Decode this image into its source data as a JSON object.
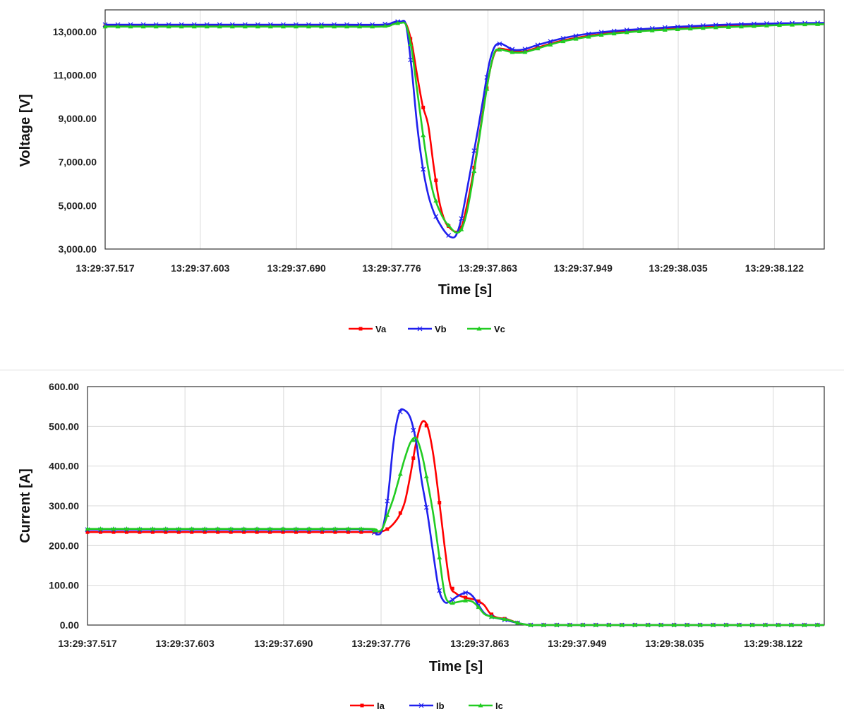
{
  "chart_data": [
    {
      "type": "line",
      "xlabel": "Time [s]",
      "ylabel": "Voltage [V]",
      "x_ticks": [
        "13:29:37.517",
        "13:29:37.603",
        "13:29:37.690",
        "13:29:37.776",
        "13:29:37.863",
        "13:29:37.949",
        "13:29:38.035",
        "13:29:38.122"
      ],
      "x_tick_seconds": [
        0,
        0.086,
        0.173,
        0.259,
        0.346,
        0.432,
        0.518,
        0.605
      ],
      "xlim_seconds": [
        0,
        0.65
      ],
      "y_ticks": [
        "3,000.00",
        "5,000.00",
        "7,000.00",
        "9,000.00",
        "11,000.00",
        "13,000.00"
      ],
      "y_tick_values": [
        3000,
        5000,
        7000,
        9000,
        11000,
        13000
      ],
      "ylim": [
        3000,
        14000
      ],
      "grid": "vertical",
      "legend_position": "bottom-center",
      "x_seconds": [
        0,
        0.05,
        0.1,
        0.15,
        0.2,
        0.25,
        0.26,
        0.263,
        0.267,
        0.272,
        0.277,
        0.282,
        0.287,
        0.292,
        0.297,
        0.302,
        0.307,
        0.312,
        0.317,
        0.322,
        0.327,
        0.332,
        0.337,
        0.342,
        0.347,
        0.352,
        0.357,
        0.362,
        0.367,
        0.372,
        0.38,
        0.39,
        0.41,
        0.43,
        0.45,
        0.47,
        0.49,
        0.51,
        0.53,
        0.55,
        0.57,
        0.59,
        0.61,
        0.63,
        0.65
      ],
      "series": [
        {
          "name": "Va",
          "color": "#ff0000",
          "marker": "square",
          "values": [
            13250,
            13250,
            13250,
            13250,
            13250,
            13250,
            13350,
            13400,
            13420,
            13350,
            12500,
            11000,
            9600,
            8700,
            6800,
            5200,
            4300,
            3950,
            3800,
            4000,
            5000,
            6300,
            7800,
            9500,
            11000,
            12000,
            12200,
            12180,
            12130,
            12080,
            12100,
            12250,
            12550,
            12750,
            12900,
            13000,
            13080,
            13120,
            13180,
            13220,
            13260,
            13300,
            13330,
            13350,
            13360
          ]
        },
        {
          "name": "Vb",
          "color": "#2020ee",
          "marker": "x",
          "values": [
            13320,
            13320,
            13320,
            13320,
            13320,
            13320,
            13420,
            13460,
            13460,
            13300,
            11300,
            8700,
            6800,
            5500,
            4700,
            4200,
            3800,
            3560,
            3620,
            4400,
            5700,
            7100,
            8500,
            10000,
            11500,
            12300,
            12450,
            12350,
            12200,
            12150,
            12200,
            12370,
            12650,
            12850,
            12980,
            13070,
            13130,
            13200,
            13250,
            13300,
            13330,
            13360,
            13380,
            13390,
            13400
          ]
        },
        {
          "name": "Vc",
          "color": "#22cc22",
          "marker": "triangle",
          "values": [
            13230,
            13230,
            13230,
            13230,
            13230,
            13230,
            13330,
            13380,
            13400,
            13300,
            12200,
            10300,
            8400,
            6700,
            5500,
            4800,
            4300,
            4000,
            3760,
            3900,
            4700,
            6100,
            7700,
            9400,
            11000,
            12050,
            12180,
            12120,
            12060,
            12030,
            12060,
            12210,
            12510,
            12710,
            12860,
            12960,
            13040,
            13090,
            13140,
            13190,
            13220,
            13260,
            13300,
            13330,
            13340
          ]
        }
      ]
    },
    {
      "type": "line",
      "xlabel": "Time [s]",
      "ylabel": "Current [A]",
      "x_ticks": [
        "13:29:37.517",
        "13:29:37.603",
        "13:29:37.690",
        "13:29:37.776",
        "13:29:37.863",
        "13:29:37.949",
        "13:29:38.035",
        "13:29:38.122"
      ],
      "x_tick_seconds": [
        0,
        0.086,
        0.173,
        0.259,
        0.346,
        0.432,
        0.518,
        0.605
      ],
      "xlim_seconds": [
        0,
        0.65
      ],
      "y_ticks": [
        "0.00",
        "100.00",
        "200.00",
        "300.00",
        "400.00",
        "500.00",
        "600.00"
      ],
      "y_tick_values": [
        0,
        100,
        200,
        300,
        400,
        500,
        600
      ],
      "ylim": [
        0,
        600
      ],
      "grid": "both",
      "legend_position": "bottom-center",
      "x_seconds": [
        0,
        0.05,
        0.1,
        0.15,
        0.2,
        0.25,
        0.255,
        0.26,
        0.265,
        0.27,
        0.275,
        0.28,
        0.285,
        0.29,
        0.295,
        0.3,
        0.305,
        0.31,
        0.315,
        0.32,
        0.325,
        0.33,
        0.335,
        0.34,
        0.345,
        0.35,
        0.355,
        0.36,
        0.365,
        0.37,
        0.38,
        0.39,
        0.4,
        0.45,
        0.5,
        0.55,
        0.6,
        0.65
      ],
      "series": [
        {
          "name": "Ia",
          "color": "#ff0000",
          "marker": "square",
          "values": [
            234,
            234,
            234,
            234,
            234,
            234,
            234,
            236,
            242,
            255,
            275,
            310,
            380,
            460,
            510,
            500,
            430,
            320,
            200,
            100,
            80,
            72,
            68,
            65,
            60,
            50,
            30,
            20,
            17,
            15,
            5,
            0,
            0,
            0,
            0,
            0,
            0,
            0
          ]
        },
        {
          "name": "Ib",
          "color": "#2020ee",
          "marker": "x",
          "values": [
            240,
            240,
            240,
            240,
            240,
            240,
            228,
            240,
            320,
            460,
            535,
            540,
            520,
            460,
            360,
            280,
            180,
            90,
            58,
            60,
            70,
            78,
            82,
            72,
            50,
            30,
            22,
            18,
            15,
            12,
            5,
            0,
            0,
            0,
            0,
            0,
            0,
            0
          ]
        },
        {
          "name": "Ic",
          "color": "#22cc22",
          "marker": "triangle",
          "values": [
            242,
            242,
            242,
            242,
            242,
            242,
            236,
            242,
            280,
            320,
            370,
            420,
            460,
            470,
            430,
            360,
            280,
            180,
            80,
            55,
            57,
            60,
            62,
            58,
            45,
            28,
            22,
            18,
            16,
            14,
            5,
            0,
            0,
            0,
            0,
            0,
            0,
            0
          ]
        }
      ]
    }
  ]
}
